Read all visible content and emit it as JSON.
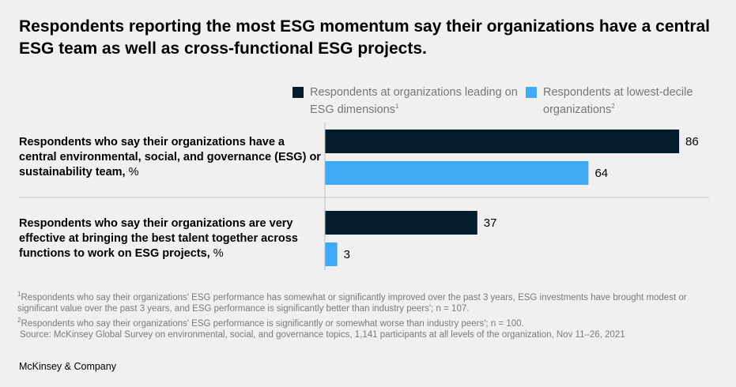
{
  "title": "Respondents reporting the most ESG momentum say their organizations have a central ESG team as well as cross-functional ESG projects.",
  "chart_data": {
    "type": "bar",
    "orientation": "horizontal",
    "categories": [
      {
        "label": "Respondents who say their organizations have a central environmental, social, and governance (ESG) or sustainability team,",
        "unit": "%"
      },
      {
        "label": "Respondents who say their organizations are very effective at bringing the best talent together across functions to work on ESG projects,",
        "unit": "%"
      }
    ],
    "series": [
      {
        "name": "Respondents at organizations leading on ESG dimensions",
        "note": "1",
        "color": "#051c2c",
        "values": [
          86,
          37
        ]
      },
      {
        "name": "Respondents at lowest-decile organizations",
        "note": "2",
        "color": "#3fa9f5",
        "values": [
          64,
          3
        ]
      }
    ],
    "xlim": [
      0,
      100
    ],
    "grid": false,
    "legend_placement": "top-right"
  },
  "footnotes": [
    "Respondents who say their organizations' ESG performance has somewhat or significantly improved over the past 3 years, ESG investments have brought modest or significant value over the past 3 years, and ESG performance is significantly better than industry peers'; n = 107.",
    "Respondents who say their organizations' ESG performance is significantly or somewhat worse than industry peers'; n = 100."
  ],
  "footnote_marks": [
    "1",
    "2"
  ],
  "source": "Source: McKinsey Global Survey on environmental, social, and governance topics, 1,141 participants at all levels of the organization, Nov 11–26, 2021",
  "brand": "McKinsey & Company"
}
